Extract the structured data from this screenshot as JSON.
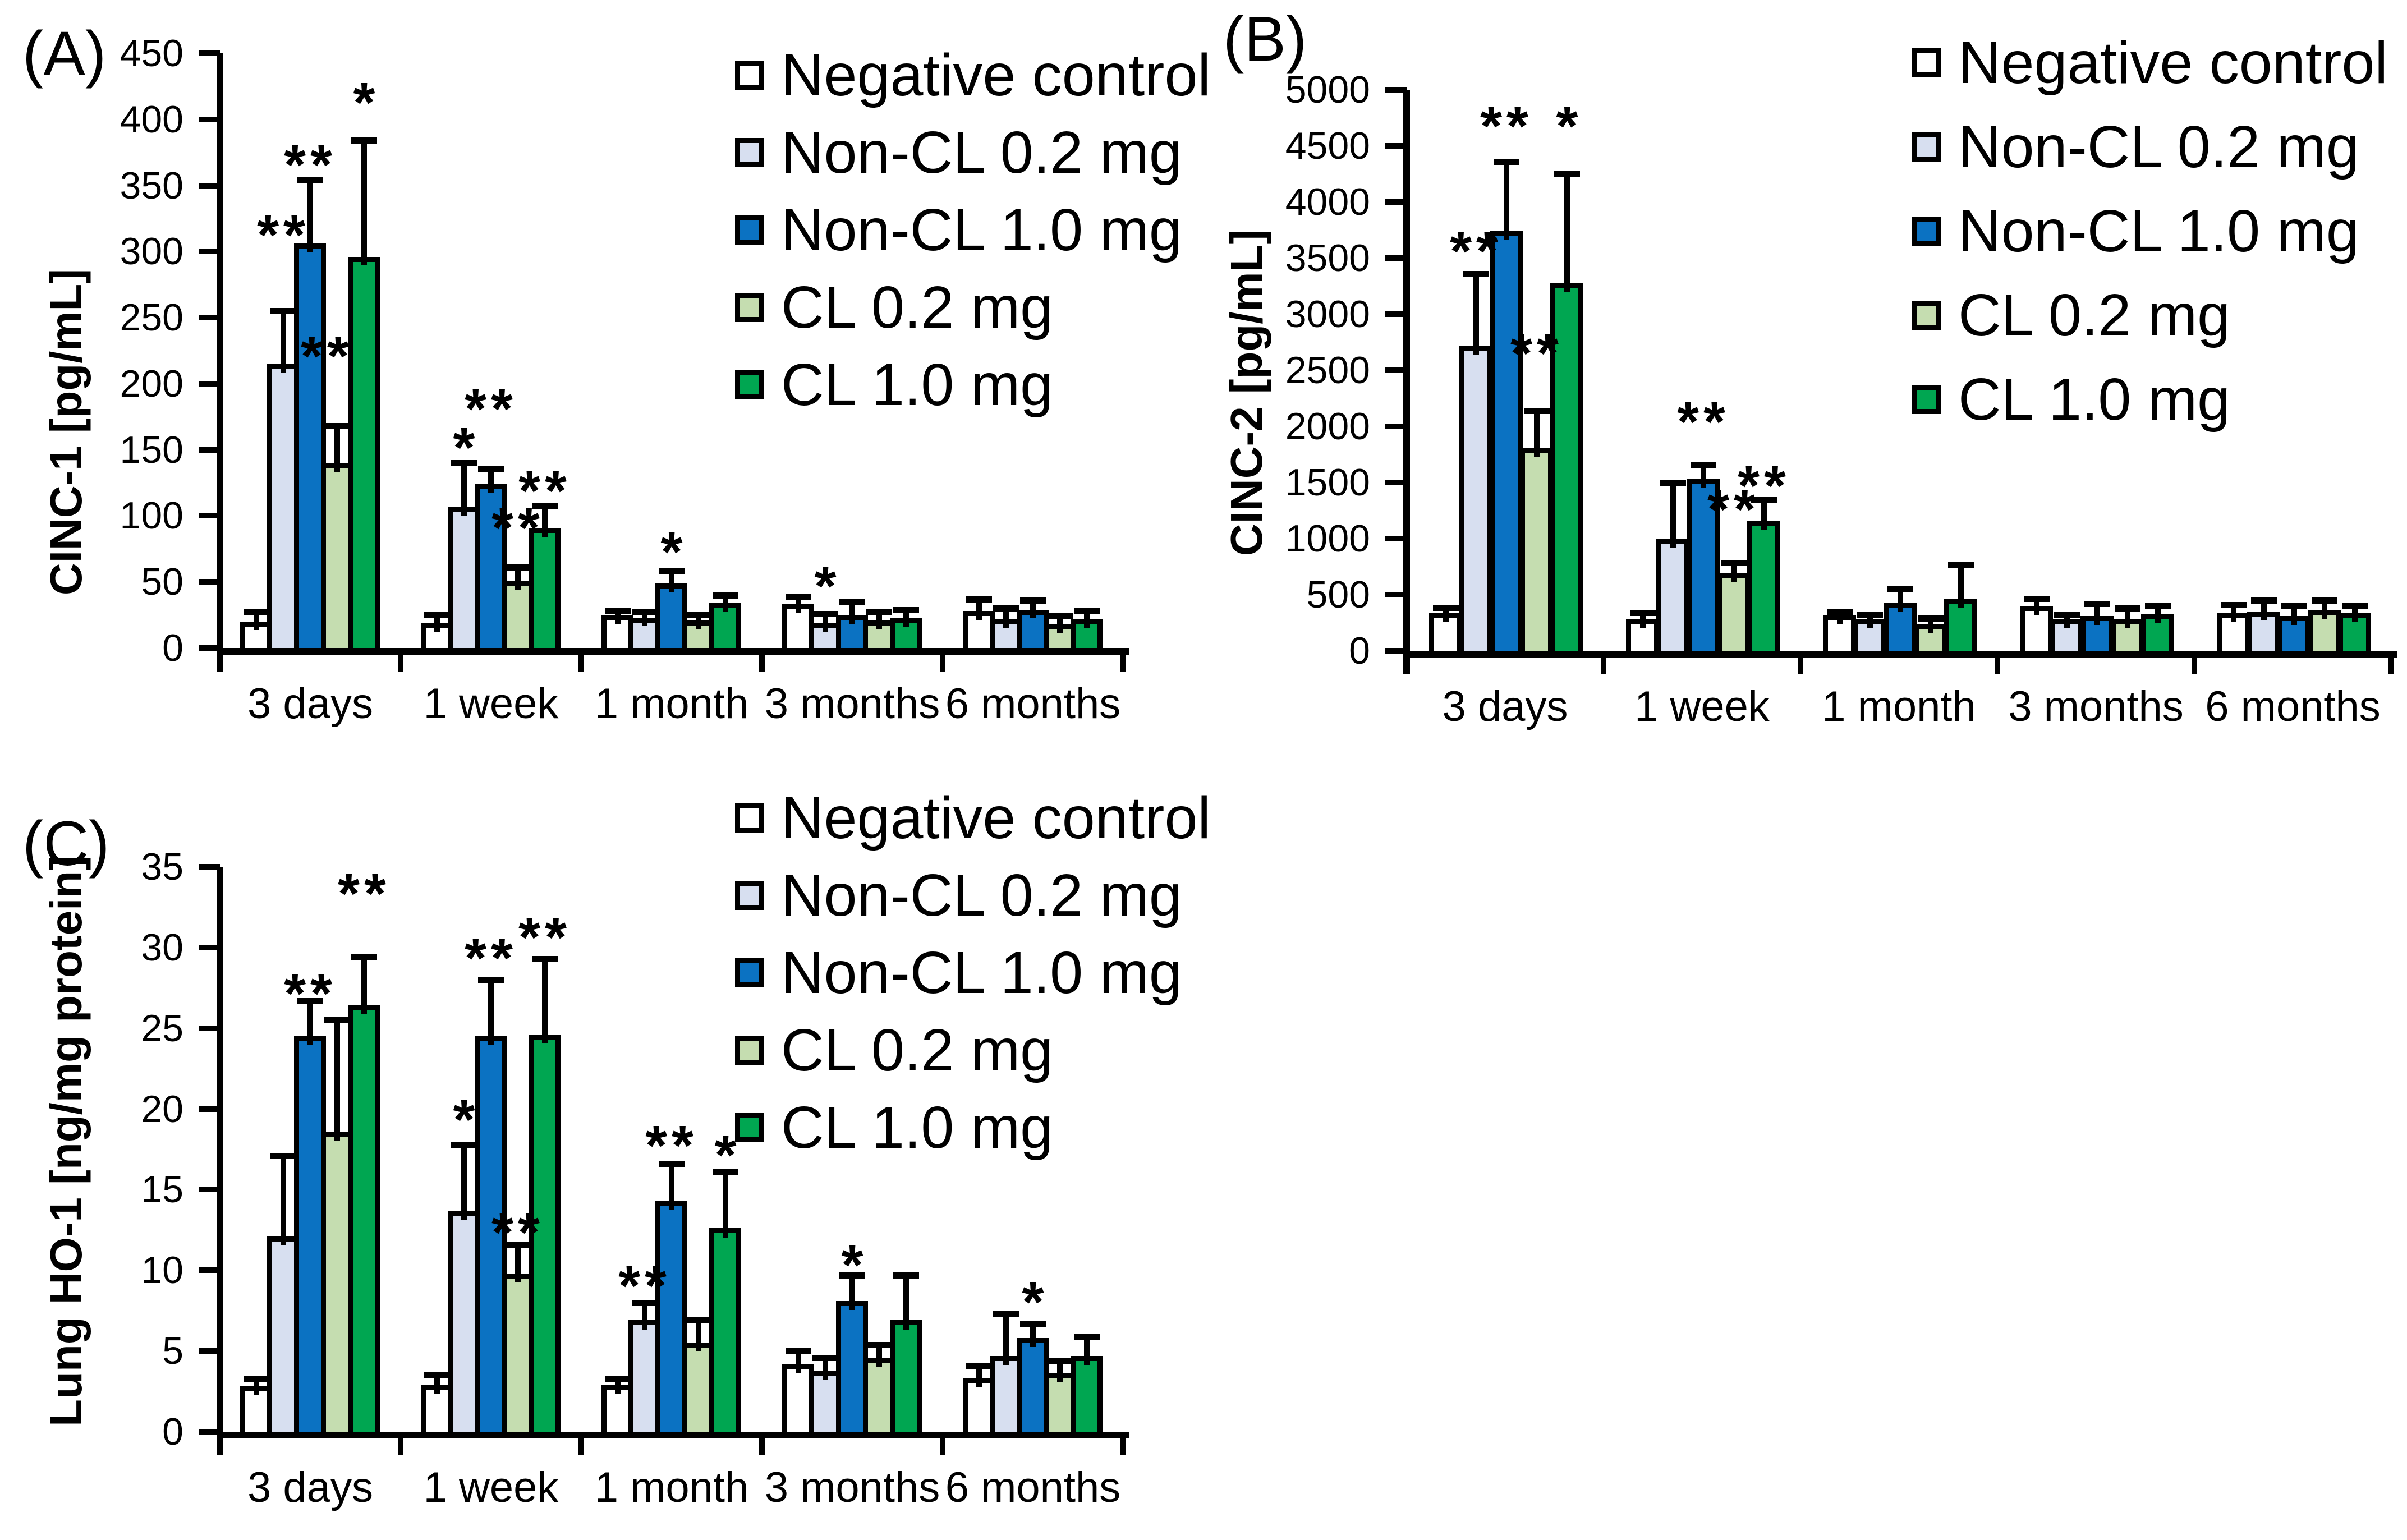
{
  "figure": {
    "background": "#FFFFFF",
    "significance_symbols": {
      "single": "*",
      "double": "**"
    }
  },
  "legend": {
    "position": "top-right-of-each-panel",
    "entries": [
      {
        "label": "Negative control",
        "color": "#FFFFFF"
      },
      {
        "label": "Non-CL 0.2 mg",
        "color": "#D7DFF0"
      },
      {
        "label": "Non-CL 1.0 mg",
        "color": "#0B72C2"
      },
      {
        "label": "CL 0.2 mg",
        "color": "#C5DDB0"
      },
      {
        "label": "CL 1.0 mg",
        "color": "#00A651"
      }
    ]
  },
  "chart_data": [
    {
      "type": "bar",
      "panel_label": "(A)",
      "ylabel": "CINC-1 [pg/mL]",
      "xlabel": "",
      "ylim": [
        0,
        450
      ],
      "ystep": 50,
      "tick_labels": [
        "0",
        "50",
        "100",
        "150",
        "200",
        "250",
        "300",
        "350",
        "400",
        "450"
      ],
      "grid": false,
      "legend_visible": true,
      "categories": [
        "3 days",
        "1 week",
        "1 month",
        "3 months",
        "6 months"
      ],
      "series": [
        {
          "name": "Negative control",
          "color": "#FFFFFF",
          "values": [
            20,
            19,
            25,
            33,
            28
          ],
          "errors": [
            7,
            6,
            3,
            6,
            9
          ]
        },
        {
          "name": "Non-CL 0.2 mg",
          "color": "#D7DFF0",
          "values": [
            215,
            107,
            23,
            19,
            22
          ],
          "errors": [
            40,
            33,
            4,
            7,
            8
          ]
        },
        {
          "name": "Non-CL 1.0 mg",
          "color": "#0B72C2",
          "values": [
            306,
            124,
            49,
            25,
            29
          ],
          "errors": [
            48,
            12,
            9,
            10,
            7
          ]
        },
        {
          "name": "CL 0.2 mg",
          "color": "#C5DDB0",
          "values": [
            140,
            51,
            21,
            21,
            18
          ],
          "errors": [
            28,
            10,
            4,
            6,
            6
          ]
        },
        {
          "name": "CL 1.0 mg",
          "color": "#00A651",
          "values": [
            296,
            91,
            34,
            23,
            22
          ],
          "errors": [
            88,
            17,
            6,
            6,
            6
          ]
        }
      ],
      "significance": [
        {
          "category": 0,
          "series": 1,
          "label": "**",
          "y": 322
        },
        {
          "category": 0,
          "series": 2,
          "label": "**",
          "y": 375
        },
        {
          "category": 0,
          "series": 3,
          "label": "**",
          "y": 230,
          "dx": -18
        },
        {
          "category": 0,
          "series": 4,
          "label": "*",
          "y": 422
        },
        {
          "category": 1,
          "series": 1,
          "label": "*",
          "y": 161
        },
        {
          "category": 1,
          "series": 2,
          "label": "**",
          "y": 190
        },
        {
          "category": 1,
          "series": 3,
          "label": "**",
          "y": 100
        },
        {
          "category": 1,
          "series": 4,
          "label": "**",
          "y": 128
        },
        {
          "category": 2,
          "series": 2,
          "label": "*",
          "y": 82
        },
        {
          "category": 3,
          "series": 1,
          "label": "*",
          "y": 56
        }
      ]
    },
    {
      "type": "bar",
      "panel_label": "(B)",
      "ylabel": "CINC-2 [pg/mL]",
      "xlabel": "",
      "ylim": [
        0,
        5000
      ],
      "ystep": 500,
      "tick_labels": [
        "0",
        "500",
        "1000",
        "1500",
        "2000",
        "2500",
        "3000",
        "3500",
        "4000",
        "4500",
        "5000"
      ],
      "grid": false,
      "legend_visible": true,
      "categories": [
        "3 days",
        "1 week",
        "1 month",
        "3 months",
        "6 months"
      ],
      "series": [
        {
          "name": "Negative control",
          "color": "#FFFFFF",
          "values": [
            340,
            280,
            320,
            400,
            340
          ],
          "errors": [
            45,
            60,
            25,
            65,
            70
          ]
        },
        {
          "name": "Non-CL 0.2 mg",
          "color": "#D7DFF0",
          "values": [
            2720,
            1000,
            280,
            280,
            350
          ],
          "errors": [
            640,
            495,
            40,
            40,
            100
          ]
        },
        {
          "name": "Non-CL 1.0 mg",
          "color": "#0B72C2",
          "values": [
            3740,
            1530,
            430,
            310,
            310
          ],
          "errors": [
            620,
            130,
            120,
            110,
            90
          ]
        },
        {
          "name": "CL 0.2 mg",
          "color": "#C5DDB0",
          "values": [
            1810,
            690,
            240,
            280,
            360
          ],
          "errors": [
            330,
            95,
            50,
            100,
            90
          ]
        },
        {
          "name": "CL 1.0 mg",
          "color": "#00A651",
          "values": [
            3280,
            1160,
            460,
            330,
            340
          ],
          "errors": [
            975,
            190,
            310,
            70,
            60
          ]
        }
      ],
      "significance": [
        {
          "category": 0,
          "series": 1,
          "label": "**",
          "y": 3670
        },
        {
          "category": 0,
          "series": 2,
          "label": "**",
          "y": 4785
        },
        {
          "category": 0,
          "series": 3,
          "label": "**",
          "y": 2760
        },
        {
          "category": 0,
          "series": 4,
          "label": "*",
          "y": 4785
        },
        {
          "category": 1,
          "series": 2,
          "label": "**",
          "y": 2150
        },
        {
          "category": 1,
          "series": 3,
          "label": "**",
          "y": 1370
        },
        {
          "category": 1,
          "series": 4,
          "label": "**",
          "y": 1580
        }
      ]
    },
    {
      "type": "bar",
      "panel_label": "(C)",
      "ylabel": "Lung HO-1 [ng/mg protein]",
      "xlabel": "",
      "ylim": [
        0,
        35
      ],
      "ystep": 5,
      "tick_labels": [
        "0",
        "5",
        "10",
        "15",
        "20",
        "25",
        "30",
        "35"
      ],
      "grid": false,
      "legend_visible": true,
      "categories": [
        "3 days",
        "1 week",
        "1 month",
        "3 months",
        "6 months"
      ],
      "series": [
        {
          "name": "Negative control",
          "color": "#FFFFFF",
          "values": [
            2.8,
            2.9,
            2.9,
            4.2,
            3.3
          ],
          "errors": [
            0.5,
            0.6,
            0.4,
            0.8,
            0.8
          ]
        },
        {
          "name": "Non-CL 0.2 mg",
          "color": "#D7DFF0",
          "values": [
            12.1,
            13.7,
            6.9,
            3.8,
            4.7
          ],
          "errors": [
            5.0,
            4.1,
            1.1,
            0.8,
            2.6
          ]
        },
        {
          "name": "Non-CL 1.0 mg",
          "color": "#0B72C2",
          "values": [
            24.5,
            24.5,
            14.3,
            8.1,
            5.8
          ],
          "errors": [
            2.2,
            3.5,
            2.3,
            1.6,
            0.9
          ]
        },
        {
          "name": "CL 0.2 mg",
          "color": "#C5DDB0",
          "values": [
            18.6,
            9.8,
            5.5,
            4.6,
            3.6
          ],
          "errors": [
            6.9,
            1.8,
            1.4,
            0.8,
            0.8
          ]
        },
        {
          "name": "CL 1.0 mg",
          "color": "#00A651",
          "values": [
            26.4,
            24.6,
            12.6,
            6.9,
            4.7
          ],
          "errors": [
            3.0,
            4.7,
            3.5,
            2.8,
            1.2
          ]
        }
      ],
      "significance": [
        {
          "category": 0,
          "series": 2,
          "label": "**",
          "y": 27.9
        },
        {
          "category": 0,
          "series": 4,
          "label": "**",
          "y": 34.1
        },
        {
          "category": 1,
          "series": 1,
          "label": "*",
          "y": 20.1
        },
        {
          "category": 1,
          "series": 2,
          "label": "**",
          "y": 30.1
        },
        {
          "category": 1,
          "series": 3,
          "label": "**",
          "y": 13.1
        },
        {
          "category": 1,
          "series": 4,
          "label": "**",
          "y": 31.4
        },
        {
          "category": 2,
          "series": 1,
          "label": "**",
          "y": 9.8
        },
        {
          "category": 2,
          "series": 2,
          "label": "**",
          "y": 18.5
        },
        {
          "category": 2,
          "series": 4,
          "label": "*",
          "y": 17.9
        },
        {
          "category": 3,
          "series": 2,
          "label": "*",
          "y": 11.1
        },
        {
          "category": 4,
          "series": 2,
          "label": "*",
          "y": 8.8
        }
      ]
    }
  ]
}
